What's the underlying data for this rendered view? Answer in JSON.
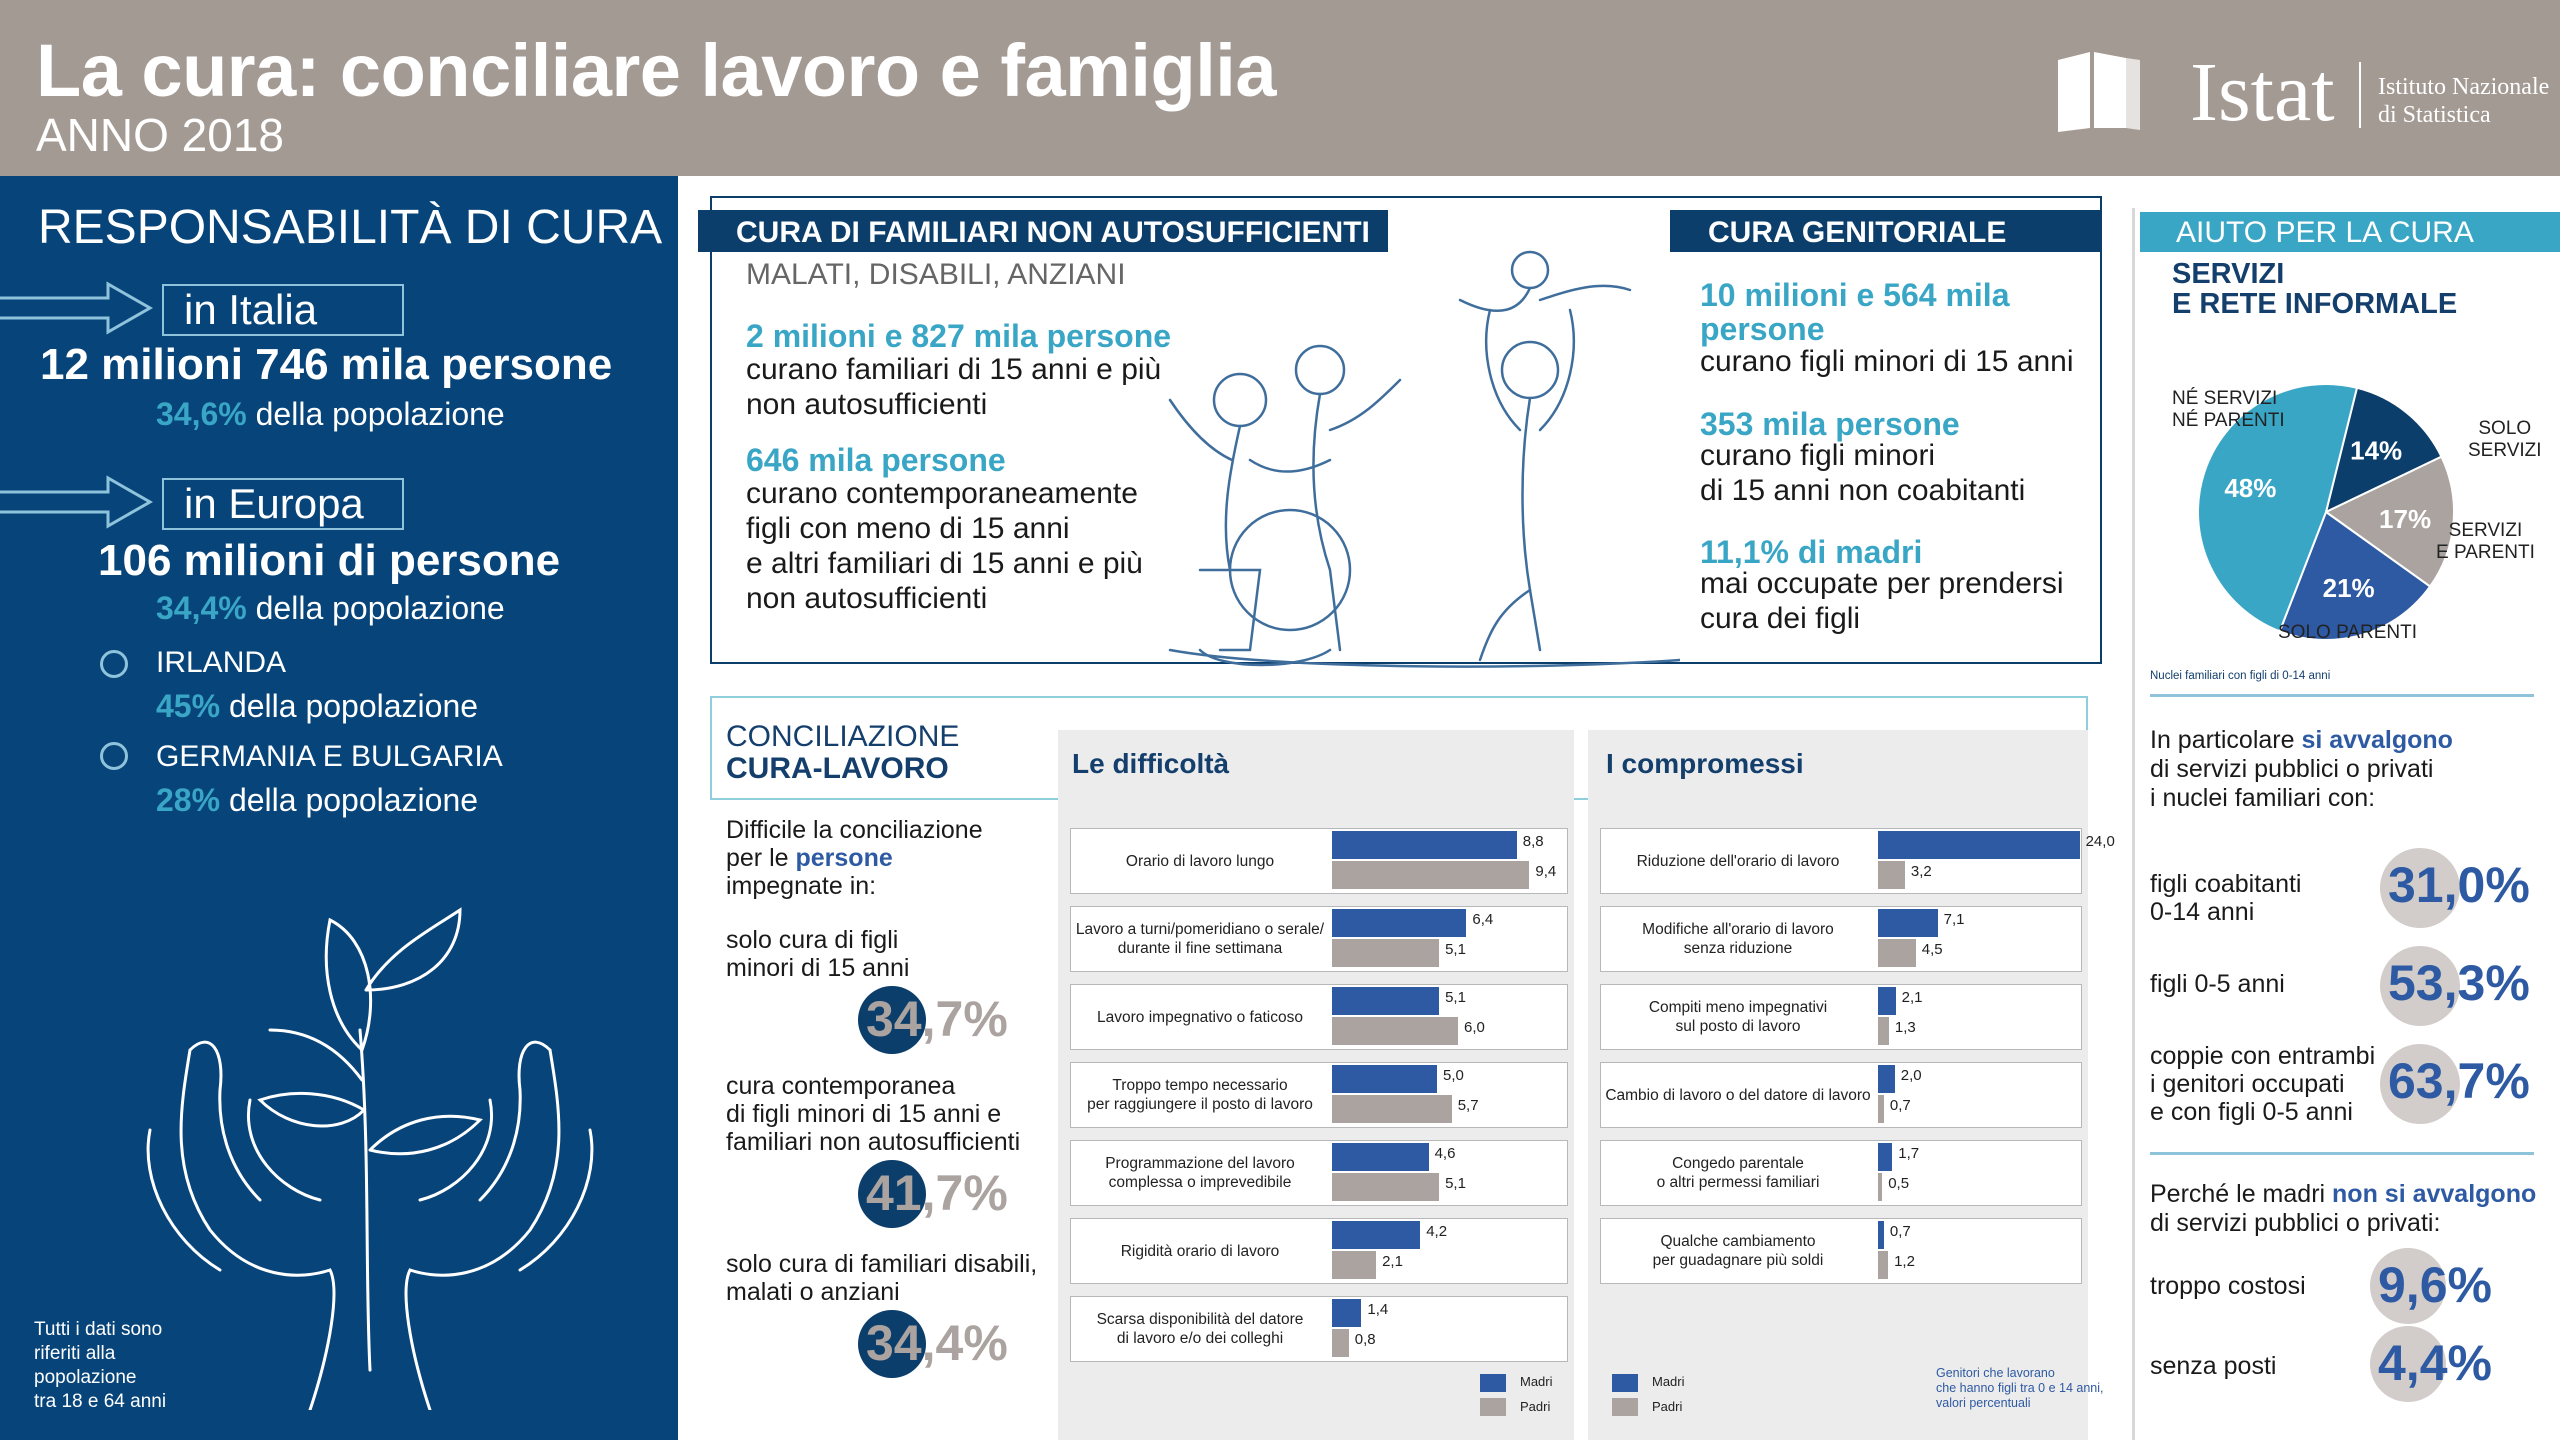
{
  "header": {
    "title": "La cura: conciliare lavoro e famiglia",
    "year": "ANNO 2018",
    "logo_text": "Istat",
    "logo_sub1": "Istituto Nazionale",
    "logo_sub2": "di Statistica"
  },
  "left": {
    "title": "RESPONSABILITÀ DI CURA",
    "italia_label": "in Italia",
    "italia_value": "12 milioni 746 mila persone",
    "italia_pct": "34,6%",
    "italia_pct_text": "della popolazione",
    "europa_label": "in Europa",
    "europa_value": "106 milioni di persone",
    "europa_pct": "34,4%",
    "europa_pct_text": "della popolazione",
    "irlanda": "IRLANDA",
    "irlanda_pct": "45%",
    "irlanda_pct_text": "della popolazione",
    "germania": "GERMANIA E BULGARIA",
    "germania_pct": "28%",
    "germania_pct_text": "della popolazione",
    "note_lines": [
      "Tutti i dati sono",
      "riferiti alla",
      "popolazione",
      "tra 18 e 64 anni"
    ]
  },
  "familiari": {
    "header": "CURA DI FAMILIARI NON AUTOSUFFICIENTI",
    "subheader": "MALATI, DISABILI, ANZIANI",
    "stat1_value": "2 milioni e 827 mila persone",
    "stat1_lines": [
      "curano familiari di 15 anni e più",
      "non autosufficienti"
    ],
    "stat2_value": "646 mila persone",
    "stat2_lines": [
      "curano contemporaneamente",
      "figli con meno di 15 anni",
      "e altri familiari di 15 anni e più",
      "non autosufficienti"
    ]
  },
  "genitoriale": {
    "header": "CURA GENITORIALE",
    "stat1_value_lines": [
      "10 milioni e 564 mila",
      "persone"
    ],
    "stat1_text": "curano figli minori di 15 anni",
    "stat2_value": "353 mila persone",
    "stat2_lines": [
      "curano figli minori",
      "di 15 anni non coabitanti"
    ],
    "stat3_value": "11,1% di madri",
    "stat3_lines": [
      "mai occupate per prendersi",
      "cura dei figli"
    ]
  },
  "conciliazione": {
    "title1": "CONCILIAZIONE",
    "title2": "CURA-LAVORO",
    "intro_lines": [
      "Difficile la conciliazione",
      "impegnate in:"
    ],
    "intro_per": "per le",
    "intro_persone": "persone",
    "items": [
      {
        "lines": [
          "solo cura di figli",
          "minori di 15 anni"
        ],
        "pct": "34,7%",
        "value": 34.7
      },
      {
        "lines": [
          "cura contemporanea",
          "di figli minori di 15 anni e",
          "familiari non autosufficienti"
        ],
        "pct": "41,7%",
        "value": 41.7
      },
      {
        "lines": [
          "solo cura di familiari disabili,",
          "malati o anziani"
        ],
        "pct": "34,4%",
        "value": 34.4
      }
    ]
  },
  "difficolta": {
    "title": "Le difficoltà",
    "legend_madri": "Madri",
    "legend_padri": "Padri"
  },
  "compromessi": {
    "title": "I compromessi",
    "legend_madri": "Madri",
    "legend_padri": "Padri",
    "note_lines": [
      "Genitori che lavorano",
      "che hanno figli tra 0 e 14 anni,",
      "valori percentuali"
    ]
  },
  "chart_data": [
    {
      "type": "bar",
      "title": "Le difficoltà",
      "categories": [
        [
          "Orario di lavoro lungo"
        ],
        [
          "Lavoro a turni/pomeridiano o serale/",
          "durante il fine settimana"
        ],
        [
          "Lavoro impegnativo o faticoso"
        ],
        [
          "Troppo tempo necessario",
          "per raggiungere il posto di lavoro"
        ],
        [
          "Programmazione del lavoro",
          "complessa o imprevedibile"
        ],
        [
          "Rigidità orario di lavoro"
        ],
        [
          "Scarsa disponibilità del datore",
          "di lavoro e/o dei colleghi"
        ]
      ],
      "series": [
        {
          "name": "Madri",
          "values": [
            8.8,
            6.4,
            5.1,
            5.0,
            4.6,
            4.2,
            1.4
          ],
          "labels": [
            "8,8",
            "6,4",
            "5,1",
            "5,0",
            "4,6",
            "4,2",
            "1,4"
          ],
          "color": "#2e5aa3"
        },
        {
          "name": "Padri",
          "values": [
            9.4,
            5.1,
            6.0,
            5.7,
            5.1,
            2.1,
            0.8
          ],
          "labels": [
            "9,4",
            "5,1",
            "6,0",
            "5,7",
            "5,1",
            "2,1",
            "0,8"
          ],
          "color": "#aaa3a0"
        }
      ]
    },
    {
      "type": "bar",
      "title": "I compromessi",
      "categories": [
        [
          "Riduzione dell'orario di lavoro"
        ],
        [
          "Modifiche all'orario di lavoro",
          "senza riduzione"
        ],
        [
          "Compiti meno impegnativi",
          "sul posto di lavoro"
        ],
        [
          "Cambio di lavoro o del datore di lavoro"
        ],
        [
          "Congedo parentale",
          "o altri permessi familiari"
        ],
        [
          "Qualche cambiamento",
          "per guadagnare più soldi"
        ]
      ],
      "series": [
        {
          "name": "Madri",
          "values": [
            24.0,
            7.1,
            2.1,
            2.0,
            1.7,
            0.7
          ],
          "labels": [
            "24,0",
            "7,1",
            "2,1",
            "2,0",
            "1,7",
            "0,7"
          ],
          "color": "#2e5aa3"
        },
        {
          "name": "Padri",
          "values": [
            3.2,
            4.5,
            1.3,
            0.7,
            0.5,
            1.2
          ],
          "labels": [
            "3,2",
            "4,5",
            "1,3",
            "0,7",
            "0,5",
            "1,2"
          ],
          "color": "#aaa3a0"
        }
      ]
    },
    {
      "type": "pie",
      "title": "SERVIZI E RETE INFORMALE",
      "slices": [
        {
          "label": "SOLO SERVIZI",
          "value": 14,
          "pct": "14%",
          "color": "#0c3e6b"
        },
        {
          "label": "SERVIZI E PARENTI",
          "value": 17,
          "pct": "17%",
          "color": "#aaa3a0"
        },
        {
          "label": "SOLO PARENTI",
          "value": 21,
          "pct": "21%",
          "color": "#2e5aa3"
        },
        {
          "label": "NÉ SERVIZI NÉ PARENTI",
          "value": 48,
          "pct": "48%",
          "color": "#3aa6c6"
        }
      ]
    }
  ],
  "aiuto": {
    "header": "AIUTO PER LA CURA",
    "sub1": "SERVIZI",
    "sub2": "E RETE INFORMALE",
    "label_ne1": "NÉ SERVIZI",
    "label_ne2": "NÉ PARENTI",
    "label_solo_serv1": "SOLO",
    "label_solo_serv2": "SERVIZI",
    "label_serv_par1": "SERVIZI",
    "label_serv_par2": "E PARENTI",
    "label_solo_par": "SOLO PARENTI",
    "pie_note": "Nuclei familiari con figli di 0-14 anni",
    "part_pre": "In particolare",
    "part_bold": "si avvalgono",
    "part_lines": [
      "di servizi pubblici o privati",
      "i nuclei familiari con:"
    ],
    "items": [
      {
        "lines": [
          "figli coabitanti",
          "0-14 anni"
        ],
        "pct": "31,0%"
      },
      {
        "lines": [
          "figli 0-5 anni"
        ],
        "pct": "53,3%"
      },
      {
        "lines": [
          "coppie con entrambi",
          "i genitori occupati",
          "e con figli 0-5 anni"
        ],
        "pct": "63,7%"
      }
    ],
    "perche_pre": "Perché le madri",
    "perche_bold": "non si avvalgono",
    "perche_line2": "di servizi pubblici o privati:",
    "reasons": [
      {
        "label": "troppo costosi",
        "pct": "9,6%"
      },
      {
        "label": "senza posti",
        "pct": "4,4%"
      }
    ]
  }
}
